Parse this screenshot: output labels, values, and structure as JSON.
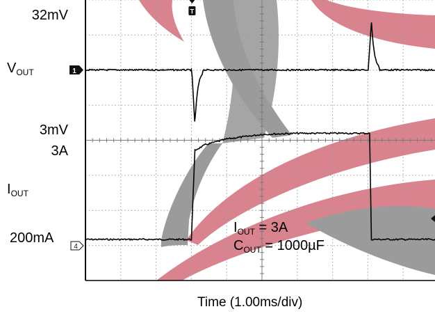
{
  "chart_data": {
    "type": "line",
    "title": "",
    "xlabel": "Time (1.00ms/div)",
    "x_unit": "ms",
    "xlim": [
      0,
      10
    ],
    "grid": true,
    "colors": {
      "trace": "#000000",
      "grid": "#9a9a9a",
      "watermark_red": "#d9838f",
      "watermark_gray": "#9b9b9b"
    },
    "channels": [
      {
        "name": "VOUT",
        "label_main": "V",
        "label_sub": "OUT",
        "marker": "1",
        "coupling": "AC",
        "scale": "32mV",
        "events": [
          {
            "type": "undershoot",
            "t_ms": 3.1,
            "peak_mV": -50
          },
          {
            "type": "overshoot",
            "t_ms": 8.1,
            "peak_mV": 45
          }
        ]
      },
      {
        "name": "IOUT",
        "label_main": "I",
        "label_sub": "OUT",
        "marker": "4",
        "scale": "3mV",
        "level_high": "3A",
        "level_low": "200mA",
        "x": [
          0,
          3.0,
          3.1,
          3.4,
          4.0,
          5.0,
          6.0,
          7.0,
          8.0,
          8.05,
          8.1,
          10.0
        ],
        "y_A": [
          0.2,
          0.2,
          2.55,
          2.7,
          2.85,
          2.97,
          3.0,
          3.0,
          3.0,
          3.0,
          0.2,
          0.2
        ]
      }
    ],
    "trigger_marker": "T",
    "annotation": {
      "line1_main": "I",
      "line1_sub": "OUT",
      "line1_value": " = 3A",
      "line2_main": "C",
      "line2_sub": "OUT",
      "line2_value": " = 1000µF"
    }
  }
}
